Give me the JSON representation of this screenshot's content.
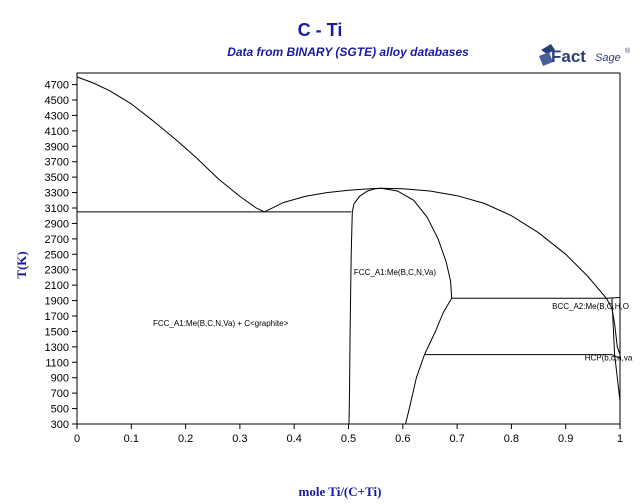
{
  "header": {
    "title": "C - Ti",
    "subtitle": "Data from BINARY (SGTE) alloy databases",
    "logo_text_main": "Fact",
    "logo_text_sub": "Sage",
    "logo_mark": "®",
    "logo_color": "#2a3f7a"
  },
  "chart_data": {
    "type": "line",
    "title": "C - Ti",
    "subtitle": "Data from BINARY (SGTE) alloy databases",
    "xlabel": "mole Ti/(C+Ti)",
    "ylabel": "T(K)",
    "xlim": [
      0,
      1
    ],
    "ylim": [
      300,
      4850
    ],
    "x_ticks": [
      0,
      0.1,
      0.2,
      0.3,
      0.4,
      0.5,
      0.6,
      0.7,
      0.8,
      0.9,
      1
    ],
    "x_tick_labels": [
      "0",
      "0.1",
      "0.2",
      "0.3",
      "0.4",
      "0.5",
      "0.6",
      "0.7",
      "0.8",
      "0.9",
      "1"
    ],
    "y_ticks": [
      300,
      500,
      700,
      900,
      1100,
      1300,
      1500,
      1700,
      1900,
      2100,
      2300,
      2500,
      2700,
      2900,
      3100,
      3300,
      3500,
      3700,
      3900,
      4100,
      4300,
      4500,
      4700
    ],
    "y_tick_labels": [
      "300",
      "500",
      "700",
      "900",
      "1100",
      "1300",
      "1500",
      "1700",
      "1900",
      "2100",
      "2300",
      "2500",
      "2700",
      "2900",
      "3100",
      "3300",
      "3500",
      "3700",
      "3900",
      "4100",
      "4300",
      "4500",
      "4700"
    ],
    "grid": false,
    "line_color": "#000000",
    "series": [
      {
        "x": [
          0,
          0.03,
          0.06,
          0.1,
          0.14,
          0.18,
          0.22,
          0.26,
          0.3,
          0.33,
          0.345
        ],
        "y": [
          4800,
          4720,
          4620,
          4450,
          4230,
          4000,
          3750,
          3480,
          3250,
          3100,
          3050
        ]
      },
      {
        "x": [
          0.345,
          0.38,
          0.42,
          0.46,
          0.5,
          0.54,
          0.56
        ],
        "y": [
          3050,
          3170,
          3250,
          3300,
          3330,
          3350,
          3355
        ]
      },
      {
        "x": [
          0.56,
          0.6,
          0.65,
          0.7,
          0.75,
          0.8,
          0.85,
          0.9,
          0.94,
          0.975
        ],
        "y": [
          3355,
          3350,
          3320,
          3260,
          3160,
          3000,
          2780,
          2500,
          2220,
          1930
        ]
      },
      {
        "x": [
          0,
          0.505
        ],
        "y": [
          3050,
          3050
        ]
      },
      {
        "x": [
          0.507,
          0.51,
          0.52,
          0.535,
          0.55,
          0.56
        ],
        "y": [
          3050,
          3150,
          3250,
          3320,
          3350,
          3355
        ]
      },
      {
        "x": [
          0.56,
          0.59,
          0.62,
          0.645,
          0.665,
          0.68,
          0.688,
          0.69
        ],
        "y": [
          3355,
          3320,
          3200,
          2980,
          2700,
          2400,
          2150,
          1930
        ]
      },
      {
        "x": [
          0.507,
          0.505,
          0.503,
          0.502,
          0.501
        ],
        "y": [
          3050,
          2500,
          1500,
          800,
          300
        ]
      },
      {
        "x": [
          0.69,
          0.675,
          0.66,
          0.64,
          0.625,
          0.612,
          0.605
        ],
        "y": [
          1930,
          1750,
          1500,
          1200,
          900,
          500,
          300
        ]
      },
      {
        "x": [
          0.69,
          0.975
        ],
        "y": [
          1930,
          1930
        ]
      },
      {
        "x": [
          0.64,
          0.985
        ],
        "y": [
          1200,
          1200
        ]
      },
      {
        "x": [
          0.975,
          0.985,
          0.99,
          0.995,
          1.0
        ],
        "y": [
          1930,
          1800,
          1600,
          1300,
          1200
        ]
      },
      {
        "x": [
          0.985,
          0.99,
          0.995,
          1.0
        ],
        "y": [
          1930,
          1200,
          900,
          600
        ]
      },
      {
        "x": [
          0.985,
          1.0
        ],
        "y": [
          1200,
          1150
        ]
      },
      {
        "x": [
          0.975,
          1.0
        ],
        "y": [
          1930,
          1940
        ]
      }
    ],
    "annotations": [
      {
        "text": "FCC_A1:Me(B,C,N,Va) + C<graphite>",
        "x": 0.14,
        "y": 1570
      },
      {
        "text": "FCC_A1:Me(B,C,N,Va)",
        "x": 0.51,
        "y": 2230
      },
      {
        "text": "BCC_A2:Me(B,C,H,O",
        "x": 0.875,
        "y": 1790
      },
      {
        "text": "HCP(b,c,n,va",
        "x": 0.935,
        "y": 1120
      }
    ]
  }
}
